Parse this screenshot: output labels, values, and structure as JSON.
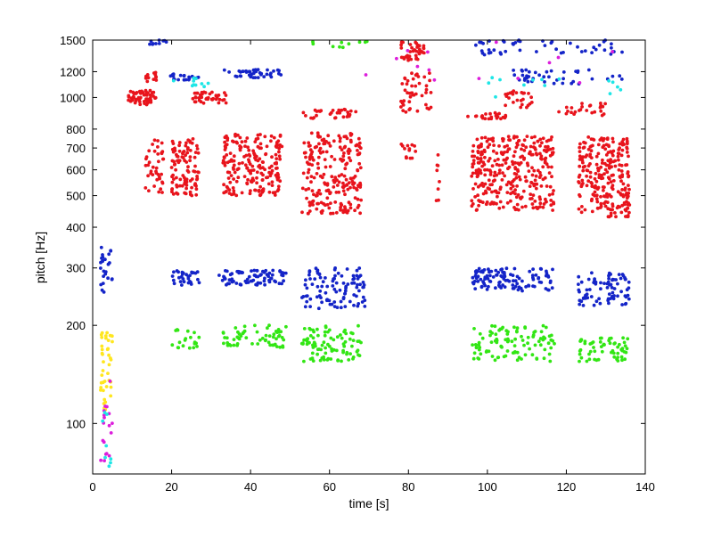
{
  "chart_data": {
    "type": "scatter",
    "title": "",
    "xlabel": "time [s]",
    "ylabel": "pitch [Hz]",
    "xlim": [
      0,
      140
    ],
    "ylim": [
      70,
      1500
    ],
    "yscale": "log",
    "grid": false,
    "legend": "none",
    "x_ticks": [
      0,
      20,
      40,
      60,
      80,
      100,
      120,
      140
    ],
    "x_tick_labels": [
      "0",
      "20",
      "40",
      "60",
      "80",
      "100",
      "120",
      "140"
    ],
    "y_ticks": [
      100,
      200,
      300,
      400,
      500,
      600,
      700,
      800,
      1000,
      1200,
      1500
    ],
    "y_tick_labels": [
      "100",
      "200",
      "300",
      "400",
      "500",
      "600",
      "700",
      "800",
      "1000",
      "1200",
      "1500"
    ],
    "colors": {
      "red": "#e8141c",
      "blue": "#1424c8",
      "green": "#32e614",
      "yellow": "#ffe61e",
      "magenta": "#dc1edc",
      "cyan": "#1ee6e6"
    },
    "clusters": [
      {
        "color": "red",
        "x": [
          9,
          16
        ],
        "y": [
          950,
          1050
        ],
        "n": 60
      },
      {
        "color": "red",
        "x": [
          12,
          18
        ],
        "y": [
          1120,
          1200
        ],
        "n": 12
      },
      {
        "color": "red",
        "x": [
          25,
          34
        ],
        "y": [
          960,
          1040
        ],
        "n": 40
      },
      {
        "color": "red",
        "x": [
          53,
          68
        ],
        "y": [
          860,
          920
        ],
        "n": 30
      },
      {
        "color": "red",
        "x": [
          78,
          84
        ],
        "y": [
          1300,
          1480
        ],
        "n": 40
      },
      {
        "color": "red",
        "x": [
          78,
          86
        ],
        "y": [
          900,
          1200
        ],
        "n": 45
      },
      {
        "color": "red",
        "x": [
          95,
          105
        ],
        "y": [
          860,
          900
        ],
        "n": 25
      },
      {
        "color": "red",
        "x": [
          104,
          112
        ],
        "y": [
          930,
          1050
        ],
        "n": 25
      },
      {
        "color": "red",
        "x": [
          118,
          130
        ],
        "y": [
          880,
          960
        ],
        "n": 25
      },
      {
        "color": "red",
        "x": [
          13,
          18
        ],
        "y": [
          500,
          750
        ],
        "n": 40
      },
      {
        "color": "red",
        "x": [
          20,
          27
        ],
        "y": [
          500,
          760
        ],
        "n": 100
      },
      {
        "color": "red",
        "x": [
          33,
          48
        ],
        "y": [
          500,
          780
        ],
        "n": 200
      },
      {
        "color": "red",
        "x": [
          53,
          68
        ],
        "y": [
          440,
          780
        ],
        "n": 220
      },
      {
        "color": "red",
        "x": [
          78,
          82
        ],
        "y": [
          650,
          720
        ],
        "n": 14
      },
      {
        "color": "red",
        "x": [
          87,
          88
        ],
        "y": [
          450,
          700
        ],
        "n": 8
      },
      {
        "color": "red",
        "x": [
          96,
          117
        ],
        "y": [
          450,
          760
        ],
        "n": 320
      },
      {
        "color": "red",
        "x": [
          123,
          136
        ],
        "y": [
          430,
          760
        ],
        "n": 240
      },
      {
        "color": "blue",
        "x": [
          13,
          19
        ],
        "y": [
          1430,
          1500
        ],
        "n": 10
      },
      {
        "color": "blue",
        "x": [
          19,
          27
        ],
        "y": [
          1130,
          1180
        ],
        "n": 20
      },
      {
        "color": "blue",
        "x": [
          33,
          48
        ],
        "y": [
          1150,
          1220
        ],
        "n": 40
      },
      {
        "color": "blue",
        "x": [
          97,
          135
        ],
        "y": [
          1350,
          1500
        ],
        "n": 50
      },
      {
        "color": "blue",
        "x": [
          105,
          135
        ],
        "y": [
          1100,
          1220
        ],
        "n": 40
      },
      {
        "color": "blue",
        "x": [
          20,
          27
        ],
        "y": [
          265,
          295
        ],
        "n": 30
      },
      {
        "color": "blue",
        "x": [
          32,
          49
        ],
        "y": [
          265,
          295
        ],
        "n": 80
      },
      {
        "color": "blue",
        "x": [
          53,
          69
        ],
        "y": [
          225,
          300
        ],
        "n": 100
      },
      {
        "color": "blue",
        "x": [
          96,
          117
        ],
        "y": [
          255,
          300
        ],
        "n": 110
      },
      {
        "color": "blue",
        "x": [
          123,
          136
        ],
        "y": [
          230,
          290
        ],
        "n": 80
      },
      {
        "color": "blue",
        "x": [
          2,
          5
        ],
        "y": [
          250,
          350
        ],
        "n": 25
      },
      {
        "color": "green",
        "x": [
          20,
          27
        ],
        "y": [
          170,
          195
        ],
        "n": 20
      },
      {
        "color": "green",
        "x": [
          33,
          49
        ],
        "y": [
          170,
          200
        ],
        "n": 60
      },
      {
        "color": "green",
        "x": [
          53,
          68
        ],
        "y": [
          155,
          200
        ],
        "n": 90
      },
      {
        "color": "green",
        "x": [
          96,
          117
        ],
        "y": [
          155,
          200
        ],
        "n": 100
      },
      {
        "color": "green",
        "x": [
          123,
          136
        ],
        "y": [
          155,
          185
        ],
        "n": 60
      },
      {
        "color": "yellow",
        "x": [
          2,
          5
        ],
        "y": [
          110,
          190
        ],
        "n": 40
      },
      {
        "color": "magenta",
        "x": [
          2,
          5
        ],
        "y": [
          75,
          140
        ],
        "n": 18
      },
      {
        "color": "cyan",
        "x": [
          2,
          5
        ],
        "y": [
          72,
          110
        ],
        "n": 8
      },
      {
        "color": "cyan",
        "x": [
          20,
          30
        ],
        "y": [
          1050,
          1150
        ],
        "n": 10
      },
      {
        "color": "cyan",
        "x": [
          100,
          135
        ],
        "y": [
          1000,
          1150
        ],
        "n": 14
      },
      {
        "color": "green",
        "x": [
          55,
          70
        ],
        "y": [
          1420,
          1500
        ],
        "n": 10
      },
      {
        "color": "magenta",
        "x": [
          55,
          135
        ],
        "y": [
          1100,
          1500
        ],
        "n": 14
      }
    ]
  }
}
